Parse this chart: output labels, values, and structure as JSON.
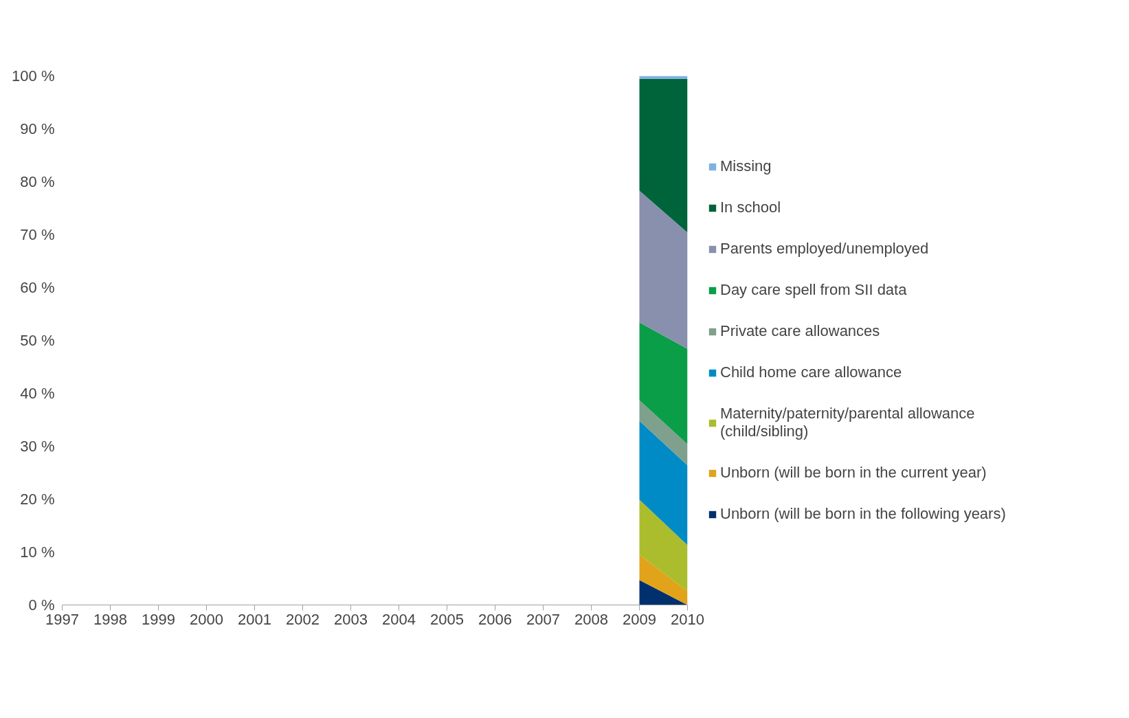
{
  "chart_data": {
    "type": "area",
    "stacked": true,
    "categories": [
      "1997",
      "1998",
      "1999",
      "2000",
      "2001",
      "2002",
      "2003",
      "2004",
      "2005",
      "2006",
      "2007",
      "2008",
      "2009",
      "2010"
    ],
    "ylim": [
      0,
      100
    ],
    "yticks": [
      {
        "value": 0,
        "label": "0 %"
      },
      {
        "value": 10,
        "label": "10 %"
      },
      {
        "value": 20,
        "label": "20 %"
      },
      {
        "value": 30,
        "label": "30 %"
      },
      {
        "value": 40,
        "label": "40 %"
      },
      {
        "value": 50,
        "label": "50 %"
      },
      {
        "value": 60,
        "label": "60 %"
      },
      {
        "value": 70,
        "label": "70 %"
      },
      {
        "value": 80,
        "label": "80 %"
      },
      {
        "value": 90,
        "label": "90 %"
      },
      {
        "value": 100,
        "label": "100 %"
      }
    ],
    "grid": false,
    "legend": "right",
    "series": [
      {
        "name": "Unborn (will be born in the following years)",
        "color": "#00306e",
        "values": [
          null,
          null,
          null,
          null,
          null,
          null,
          null,
          null,
          null,
          null,
          null,
          null,
          4.7,
          0
        ]
      },
      {
        "name": "Unborn (will be born in the current year)",
        "color": "#e0a31a",
        "values": [
          null,
          null,
          null,
          null,
          null,
          null,
          null,
          null,
          null,
          null,
          null,
          null,
          4.8,
          2.6
        ]
      },
      {
        "name": "Maternity/paternity/parental allowance (child/sibling)",
        "color": "#abbd2c",
        "values": [
          null,
          null,
          null,
          null,
          null,
          null,
          null,
          null,
          null,
          null,
          null,
          null,
          10.4,
          8.7
        ]
      },
      {
        "name": "Child home care allowance",
        "color": "#008bc6",
        "values": [
          null,
          null,
          null,
          null,
          null,
          null,
          null,
          null,
          null,
          null,
          null,
          null,
          14.9,
          15.1
        ]
      },
      {
        "name": "Private care allowances",
        "color": "#7fa08c",
        "values": [
          null,
          null,
          null,
          null,
          null,
          null,
          null,
          null,
          null,
          null,
          null,
          null,
          3.9,
          4.0
        ]
      },
      {
        "name": "Day care spell from SII data",
        "color": "#0a9e48",
        "values": [
          null,
          null,
          null,
          null,
          null,
          null,
          null,
          null,
          null,
          null,
          null,
          null,
          14.7,
          18.0
        ]
      },
      {
        "name": "Parents employed/unemployed",
        "color": "#8890ad",
        "values": [
          null,
          null,
          null,
          null,
          null,
          null,
          null,
          null,
          null,
          null,
          null,
          null,
          24.9,
          22.0
        ]
      },
      {
        "name": "In school",
        "color": "#00643a",
        "values": [
          null,
          null,
          null,
          null,
          null,
          null,
          null,
          null,
          null,
          null,
          null,
          null,
          21.1,
          29.0
        ]
      },
      {
        "name": "Missing",
        "color": "#7fb2e0",
        "values": [
          null,
          null,
          null,
          null,
          null,
          null,
          null,
          null,
          null,
          null,
          null,
          null,
          0.6,
          0.6
        ]
      }
    ]
  }
}
